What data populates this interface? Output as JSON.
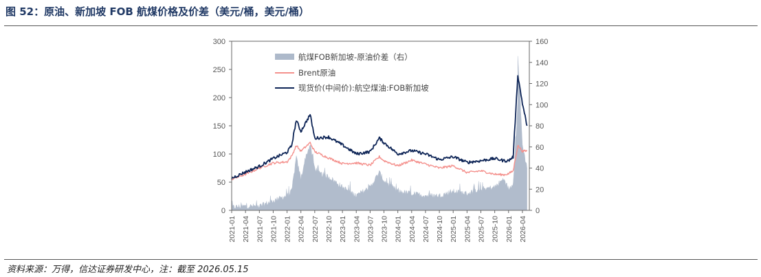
{
  "header": {
    "title": "图 52：原油、新加坡 FOB 航煤价格及价差（美元/桶，美元/桶）"
  },
  "footer": {
    "source": "资料来源：万得，信达证券研发中心，注：截至 2026.05.15"
  },
  "colors": {
    "spread": "#adb9ca",
    "brent": "#f4908c",
    "jet": "#0d2456",
    "axis": "#666666"
  },
  "chart_data": {
    "type": "line",
    "x_ticks": [
      "2021-01",
      "2021-04",
      "2021-07",
      "2021-10",
      "2022-01",
      "2022-04",
      "2022-07",
      "2022-10",
      "2023-01",
      "2023-04",
      "2023-07",
      "2023-10",
      "2024-01",
      "2024-04",
      "2024-07",
      "2024-10",
      "2025-01",
      "2025-04",
      "2025-07",
      "2025-10",
      "2026-01",
      "2026-04"
    ],
    "y_left": {
      "min": 0,
      "max": 300,
      "ticks": [
        "0",
        "50",
        "100",
        "150",
        "200",
        "250",
        "300"
      ]
    },
    "y_right": {
      "min": 0,
      "max": 160,
      "ticks": [
        "0",
        "20",
        "40",
        "60",
        "80",
        "100",
        "120",
        "140",
        "160"
      ]
    },
    "legend_position": "top-left",
    "series": [
      {
        "name": "航煤FOB新加坡-原油价差（右）",
        "type": "area",
        "axis": "right",
        "x": [
          "2021-01",
          "2021-04",
          "2021-07",
          "2021-10",
          "2022-01",
          "2022-02",
          "2022-03",
          "2022-04",
          "2022-05",
          "2022-06",
          "2022-07",
          "2022-08",
          "2022-10",
          "2023-01",
          "2023-04",
          "2023-07",
          "2023-09",
          "2023-10",
          "2024-01",
          "2024-04",
          "2024-07",
          "2024-10",
          "2025-01",
          "2025-04",
          "2025-07",
          "2025-10",
          "2025-12",
          "2026-01",
          "2026-02",
          "2026-03",
          "2026-03",
          "2026-04",
          "2026-05"
        ],
        "values": [
          3,
          4,
          4,
          9,
          14,
          18,
          50,
          30,
          50,
          62,
          40,
          35,
          32,
          22,
          14,
          22,
          36,
          28,
          18,
          16,
          14,
          14,
          18,
          16,
          20,
          22,
          30,
          20,
          26,
          100,
          148,
          62,
          40
        ]
      },
      {
        "name": "Brent原油",
        "type": "line",
        "axis": "left",
        "x": [
          "2021-01",
          "2021-04",
          "2021-07",
          "2021-10",
          "2022-01",
          "2022-02",
          "2022-03",
          "2022-04",
          "2022-06",
          "2022-07",
          "2022-10",
          "2023-01",
          "2023-04",
          "2023-07",
          "2023-09",
          "2023-10",
          "2024-01",
          "2024-04",
          "2024-07",
          "2024-10",
          "2025-01",
          "2025-04",
          "2025-07",
          "2025-10",
          "2025-12",
          "2026-01",
          "2026-02",
          "2026-03",
          "2026-04",
          "2026-05"
        ],
        "values": [
          55,
          64,
          75,
          84,
          86,
          96,
          115,
          105,
          120,
          104,
          93,
          83,
          84,
          80,
          95,
          88,
          79,
          89,
          82,
          75,
          79,
          67,
          70,
          64,
          63,
          65,
          70,
          115,
          105,
          105
        ]
      },
      {
        "name": "现货价(中间价):航空煤油:FOB新加坡",
        "type": "line",
        "axis": "left",
        "x": [
          "2021-01",
          "2021-04",
          "2021-07",
          "2021-10",
          "2022-01",
          "2022-02",
          "2022-03",
          "2022-04",
          "2022-06",
          "2022-07",
          "2022-10",
          "2023-01",
          "2023-04",
          "2023-07",
          "2023-09",
          "2023-10",
          "2024-01",
          "2024-04",
          "2024-07",
          "2024-10",
          "2025-01",
          "2025-04",
          "2025-07",
          "2025-10",
          "2025-12",
          "2026-01",
          "2026-02",
          "2026-03",
          "2026-04",
          "2026-05"
        ],
        "values": [
          57,
          68,
          78,
          92,
          103,
          115,
          160,
          140,
          170,
          128,
          130,
          116,
          100,
          104,
          128,
          120,
          100,
          106,
          100,
          90,
          95,
          85,
          88,
          92,
          88,
          88,
          95,
          240,
          190,
          150
        ]
      }
    ]
  }
}
